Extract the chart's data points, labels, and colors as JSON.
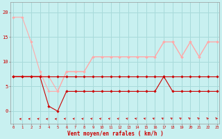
{
  "x": [
    0,
    1,
    2,
    3,
    4,
    5,
    6,
    7,
    8,
    9,
    10,
    11,
    12,
    13,
    14,
    15,
    16,
    17,
    18,
    19,
    20,
    21,
    22,
    23
  ],
  "line_rafales_high": [
    19,
    19,
    14,
    8,
    4,
    4,
    8,
    8,
    8,
    11,
    11,
    11,
    11,
    11,
    11,
    11,
    11,
    14,
    14,
    11,
    14,
    11,
    14,
    14
  ],
  "line_vent_high": [
    7,
    7,
    7,
    7,
    7,
    4,
    8,
    8,
    8,
    11,
    11,
    11,
    11,
    11,
    11,
    11,
    11,
    14,
    14,
    11,
    14,
    11,
    14,
    14
  ],
  "line_vent_flat": [
    7,
    7,
    7,
    7,
    7,
    7,
    7,
    7,
    7,
    7,
    7,
    7,
    7,
    7,
    7,
    7,
    7,
    7,
    7,
    7,
    7,
    7,
    7,
    7
  ],
  "line_vent_low": [
    7,
    7,
    7,
    7,
    1,
    0,
    4,
    4,
    4,
    4,
    4,
    4,
    4,
    4,
    4,
    4,
    4,
    7,
    4,
    4,
    4,
    4,
    4,
    4
  ],
  "bg_color": "#c8f0f0",
  "grid_color": "#a8dada",
  "color_light": "#ffaaaa",
  "color_dark": "#cc0000",
  "text_color": "#cc0000",
  "xlabel": "Vent moyen/en rafales ( km/h )",
  "yticks": [
    0,
    5,
    10,
    15,
    20
  ],
  "xtick_labels": [
    "0",
    "1",
    "2",
    "3",
    "4",
    "5",
    "6",
    "7",
    "8",
    "9",
    "10",
    "11",
    "12",
    "13",
    "14",
    "15",
    "16",
    "17",
    "18",
    "19",
    "20",
    "21",
    "22",
    "23"
  ],
  "ylim": [
    -2.5,
    22
  ],
  "xlim": [
    -0.3,
    23.3
  ],
  "arrow_angles": [
    180,
    175,
    170,
    165,
    175,
    175,
    160,
    160,
    160,
    155,
    155,
    155,
    155,
    150,
    150,
    148,
    145,
    140,
    138,
    135,
    130,
    125,
    120,
    115
  ]
}
